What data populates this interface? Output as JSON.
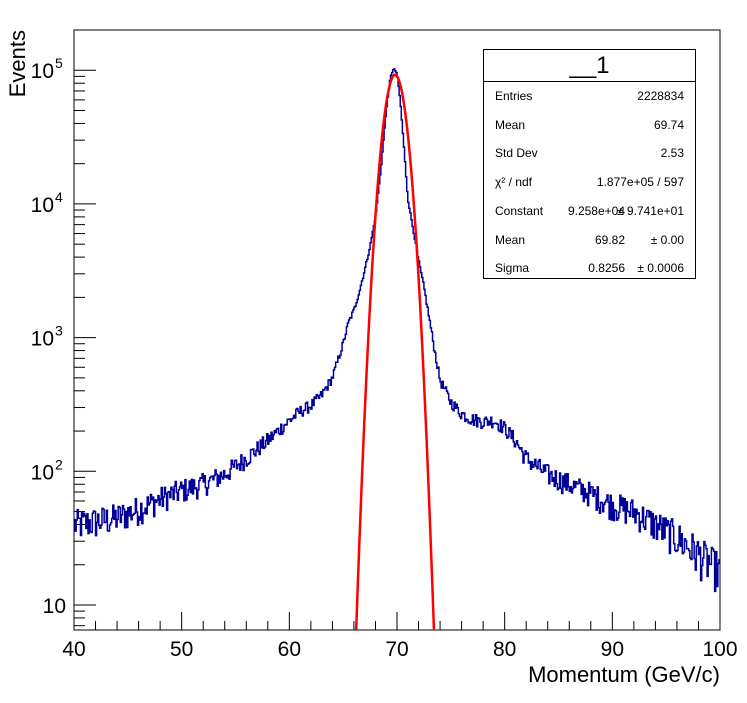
{
  "chart_data": {
    "type": "histogram",
    "title": "__1",
    "xlabel": "Momentum (GeV/c)",
    "ylabel": "Events",
    "xlim": [
      40,
      100
    ],
    "ylim": [
      6.5,
      200000
    ],
    "yscale": "log",
    "x_ticks": [
      "40",
      "50",
      "60",
      "70",
      "80",
      "90",
      "100"
    ],
    "y_ticks": [
      {
        "value": 10,
        "base": "10",
        "exp": ""
      },
      {
        "value": 100,
        "base": "10",
        "exp": "2"
      },
      {
        "value": 1000,
        "base": "10",
        "exp": "3"
      },
      {
        "value": 10000,
        "base": "10",
        "exp": "4"
      },
      {
        "value": 100000,
        "base": "10",
        "exp": "5"
      }
    ],
    "histogram": {
      "color": "#000099",
      "x": [
        40,
        42,
        44,
        46,
        48,
        50,
        52,
        54,
        56,
        58,
        60,
        61,
        62,
        63,
        64,
        65,
        65.5,
        66,
        66.5,
        67,
        67.5,
        68,
        68.5,
        69,
        69.4,
        69.7,
        70,
        70.3,
        70.6,
        71,
        71.5,
        72,
        72.5,
        73,
        73.5,
        74,
        74.5,
        75,
        76,
        77,
        78,
        79,
        80,
        81,
        82,
        84,
        86,
        88,
        90,
        92,
        94,
        96,
        98,
        100
      ],
      "y": [
        40,
        42,
        45,
        52,
        62,
        72,
        80,
        95,
        125,
        170,
        240,
        280,
        310,
        370,
        500,
        900,
        1300,
        1600,
        2200,
        3200,
        4800,
        8000,
        18000,
        50000,
        90000,
        103000,
        95000,
        60000,
        30000,
        11000,
        6500,
        3800,
        2400,
        1400,
        800,
        480,
        400,
        330,
        270,
        245,
        235,
        240,
        210,
        170,
        125,
        95,
        80,
        68,
        56,
        50,
        40,
        32,
        24,
        18
      ]
    },
    "fit": {
      "name": "gaus",
      "color": "#ff0000",
      "constant": 92580,
      "mean": 69.82,
      "sigma": 0.8256
    },
    "stats": {
      "title": "__1",
      "rows": [
        {
          "label": "Entries",
          "value": "2228834",
          "error": ""
        },
        {
          "label": "Mean",
          "value": "69.74",
          "error": ""
        },
        {
          "label": "Std Dev",
          "value": "2.53",
          "error": ""
        },
        {
          "label": "χ² / ndf",
          "value": "1.877e+05 / 597",
          "error": ""
        },
        {
          "label": "Constant",
          "value": "9.258e+04",
          "error": "± 9.741e+01"
        },
        {
          "label": "Mean",
          "value": "69.82",
          "error": "± 0.00"
        },
        {
          "label": "Sigma",
          "value": "0.8256",
          "error": "± 0.0006"
        }
      ]
    }
  }
}
